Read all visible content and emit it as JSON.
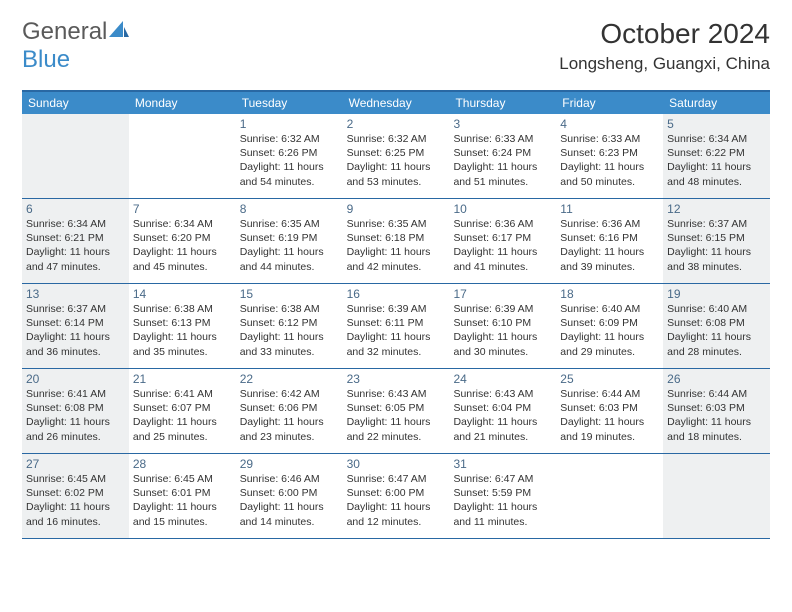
{
  "brand": {
    "part1": "General",
    "part2": "Blue"
  },
  "title": "October 2024",
  "location": "Longsheng, Guangxi, China",
  "colors": {
    "header_bg": "#3b8bc9",
    "border": "#2968a3",
    "weekend_bg": "#eef0f1",
    "text": "#333333",
    "daynum": "#4a6a88"
  },
  "day_labels": [
    "Sunday",
    "Monday",
    "Tuesday",
    "Wednesday",
    "Thursday",
    "Friday",
    "Saturday"
  ],
  "weeks": [
    [
      {
        "blank": true,
        "weekend": true
      },
      {
        "blank": true
      },
      {
        "day": "1",
        "sunrise": "Sunrise: 6:32 AM",
        "sunset": "Sunset: 6:26 PM",
        "daylight": "Daylight: 11 hours and 54 minutes."
      },
      {
        "day": "2",
        "sunrise": "Sunrise: 6:32 AM",
        "sunset": "Sunset: 6:25 PM",
        "daylight": "Daylight: 11 hours and 53 minutes."
      },
      {
        "day": "3",
        "sunrise": "Sunrise: 6:33 AM",
        "sunset": "Sunset: 6:24 PM",
        "daylight": "Daylight: 11 hours and 51 minutes."
      },
      {
        "day": "4",
        "sunrise": "Sunrise: 6:33 AM",
        "sunset": "Sunset: 6:23 PM",
        "daylight": "Daylight: 11 hours and 50 minutes."
      },
      {
        "day": "5",
        "weekend": true,
        "sunrise": "Sunrise: 6:34 AM",
        "sunset": "Sunset: 6:22 PM",
        "daylight": "Daylight: 11 hours and 48 minutes."
      }
    ],
    [
      {
        "day": "6",
        "weekend": true,
        "sunrise": "Sunrise: 6:34 AM",
        "sunset": "Sunset: 6:21 PM",
        "daylight": "Daylight: 11 hours and 47 minutes."
      },
      {
        "day": "7",
        "sunrise": "Sunrise: 6:34 AM",
        "sunset": "Sunset: 6:20 PM",
        "daylight": "Daylight: 11 hours and 45 minutes."
      },
      {
        "day": "8",
        "sunrise": "Sunrise: 6:35 AM",
        "sunset": "Sunset: 6:19 PM",
        "daylight": "Daylight: 11 hours and 44 minutes."
      },
      {
        "day": "9",
        "sunrise": "Sunrise: 6:35 AM",
        "sunset": "Sunset: 6:18 PM",
        "daylight": "Daylight: 11 hours and 42 minutes."
      },
      {
        "day": "10",
        "sunrise": "Sunrise: 6:36 AM",
        "sunset": "Sunset: 6:17 PM",
        "daylight": "Daylight: 11 hours and 41 minutes."
      },
      {
        "day": "11",
        "sunrise": "Sunrise: 6:36 AM",
        "sunset": "Sunset: 6:16 PM",
        "daylight": "Daylight: 11 hours and 39 minutes."
      },
      {
        "day": "12",
        "weekend": true,
        "sunrise": "Sunrise: 6:37 AM",
        "sunset": "Sunset: 6:15 PM",
        "daylight": "Daylight: 11 hours and 38 minutes."
      }
    ],
    [
      {
        "day": "13",
        "weekend": true,
        "sunrise": "Sunrise: 6:37 AM",
        "sunset": "Sunset: 6:14 PM",
        "daylight": "Daylight: 11 hours and 36 minutes."
      },
      {
        "day": "14",
        "sunrise": "Sunrise: 6:38 AM",
        "sunset": "Sunset: 6:13 PM",
        "daylight": "Daylight: 11 hours and 35 minutes."
      },
      {
        "day": "15",
        "sunrise": "Sunrise: 6:38 AM",
        "sunset": "Sunset: 6:12 PM",
        "daylight": "Daylight: 11 hours and 33 minutes."
      },
      {
        "day": "16",
        "sunrise": "Sunrise: 6:39 AM",
        "sunset": "Sunset: 6:11 PM",
        "daylight": "Daylight: 11 hours and 32 minutes."
      },
      {
        "day": "17",
        "sunrise": "Sunrise: 6:39 AM",
        "sunset": "Sunset: 6:10 PM",
        "daylight": "Daylight: 11 hours and 30 minutes."
      },
      {
        "day": "18",
        "sunrise": "Sunrise: 6:40 AM",
        "sunset": "Sunset: 6:09 PM",
        "daylight": "Daylight: 11 hours and 29 minutes."
      },
      {
        "day": "19",
        "weekend": true,
        "sunrise": "Sunrise: 6:40 AM",
        "sunset": "Sunset: 6:08 PM",
        "daylight": "Daylight: 11 hours and 28 minutes."
      }
    ],
    [
      {
        "day": "20",
        "weekend": true,
        "sunrise": "Sunrise: 6:41 AM",
        "sunset": "Sunset: 6:08 PM",
        "daylight": "Daylight: 11 hours and 26 minutes."
      },
      {
        "day": "21",
        "sunrise": "Sunrise: 6:41 AM",
        "sunset": "Sunset: 6:07 PM",
        "daylight": "Daylight: 11 hours and 25 minutes."
      },
      {
        "day": "22",
        "sunrise": "Sunrise: 6:42 AM",
        "sunset": "Sunset: 6:06 PM",
        "daylight": "Daylight: 11 hours and 23 minutes."
      },
      {
        "day": "23",
        "sunrise": "Sunrise: 6:43 AM",
        "sunset": "Sunset: 6:05 PM",
        "daylight": "Daylight: 11 hours and 22 minutes."
      },
      {
        "day": "24",
        "sunrise": "Sunrise: 6:43 AM",
        "sunset": "Sunset: 6:04 PM",
        "daylight": "Daylight: 11 hours and 21 minutes."
      },
      {
        "day": "25",
        "sunrise": "Sunrise: 6:44 AM",
        "sunset": "Sunset: 6:03 PM",
        "daylight": "Daylight: 11 hours and 19 minutes."
      },
      {
        "day": "26",
        "weekend": true,
        "sunrise": "Sunrise: 6:44 AM",
        "sunset": "Sunset: 6:03 PM",
        "daylight": "Daylight: 11 hours and 18 minutes."
      }
    ],
    [
      {
        "day": "27",
        "weekend": true,
        "sunrise": "Sunrise: 6:45 AM",
        "sunset": "Sunset: 6:02 PM",
        "daylight": "Daylight: 11 hours and 16 minutes."
      },
      {
        "day": "28",
        "sunrise": "Sunrise: 6:45 AM",
        "sunset": "Sunset: 6:01 PM",
        "daylight": "Daylight: 11 hours and 15 minutes."
      },
      {
        "day": "29",
        "sunrise": "Sunrise: 6:46 AM",
        "sunset": "Sunset: 6:00 PM",
        "daylight": "Daylight: 11 hours and 14 minutes."
      },
      {
        "day": "30",
        "sunrise": "Sunrise: 6:47 AM",
        "sunset": "Sunset: 6:00 PM",
        "daylight": "Daylight: 11 hours and 12 minutes."
      },
      {
        "day": "31",
        "sunrise": "Sunrise: 6:47 AM",
        "sunset": "Sunset: 5:59 PM",
        "daylight": "Daylight: 11 hours and 11 minutes."
      },
      {
        "blank": true
      },
      {
        "blank": true,
        "weekend": true
      }
    ]
  ]
}
